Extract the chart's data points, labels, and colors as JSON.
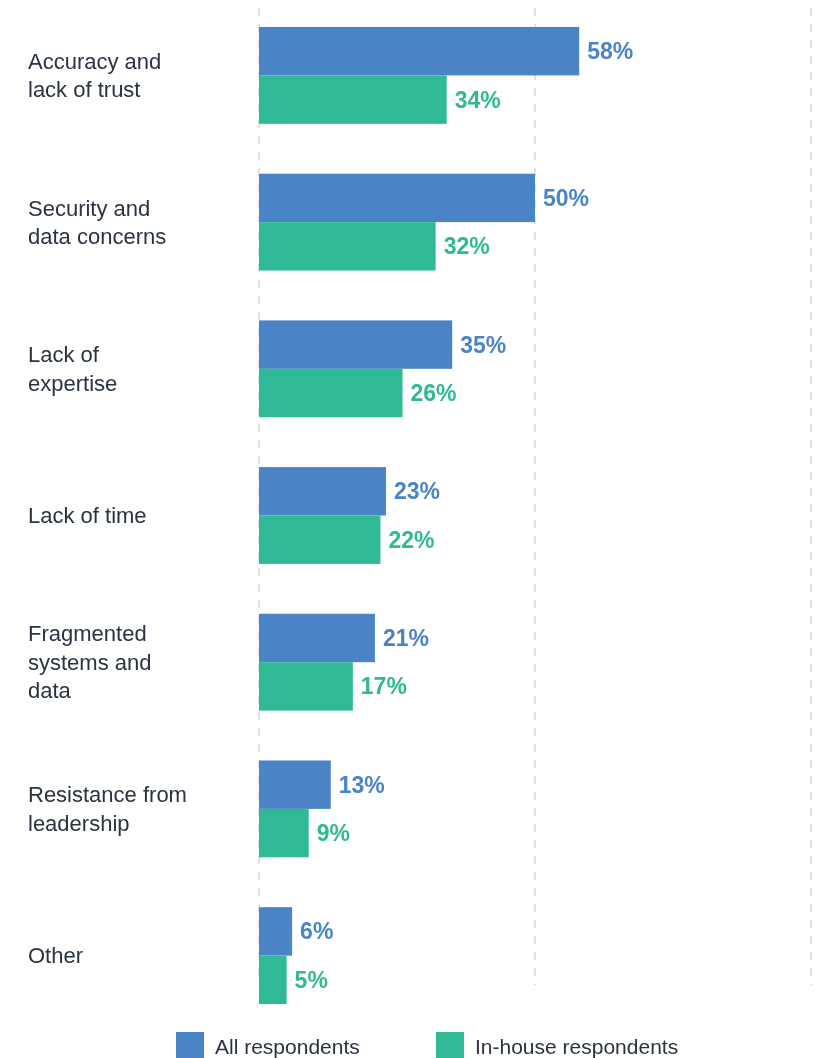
{
  "chart_data": {
    "type": "bar",
    "orientation": "horizontal",
    "categories": [
      "Accuracy and lack of trust",
      "Security and data concerns",
      "Lack of expertise",
      "Lack of time",
      "Fragmented systems and data",
      "Resistance from leadership",
      "Other"
    ],
    "series": [
      {
        "name": "All respondents",
        "color": "#4a84c6",
        "values": [
          58,
          50,
          35,
          23,
          21,
          13,
          6
        ],
        "value_labels": [
          "58%",
          "50%",
          "35%",
          "23%",
          "21%",
          "13%",
          "6%"
        ]
      },
      {
        "name": "In-house respondents",
        "color": "#30b995",
        "values": [
          34,
          32,
          26,
          22,
          17,
          9,
          5
        ],
        "value_labels": [
          "34%",
          "32%",
          "26%",
          "22%",
          "17%",
          "9%",
          "5%"
        ]
      }
    ],
    "xlim": [
      0,
      100
    ],
    "xticks": [
      {
        "value": 0,
        "label": null
      },
      {
        "value": 50,
        "label": null
      },
      {
        "value": 100,
        "label": null
      }
    ],
    "tick_labels": "y",
    "grid": "x",
    "legend": "bottom"
  }
}
